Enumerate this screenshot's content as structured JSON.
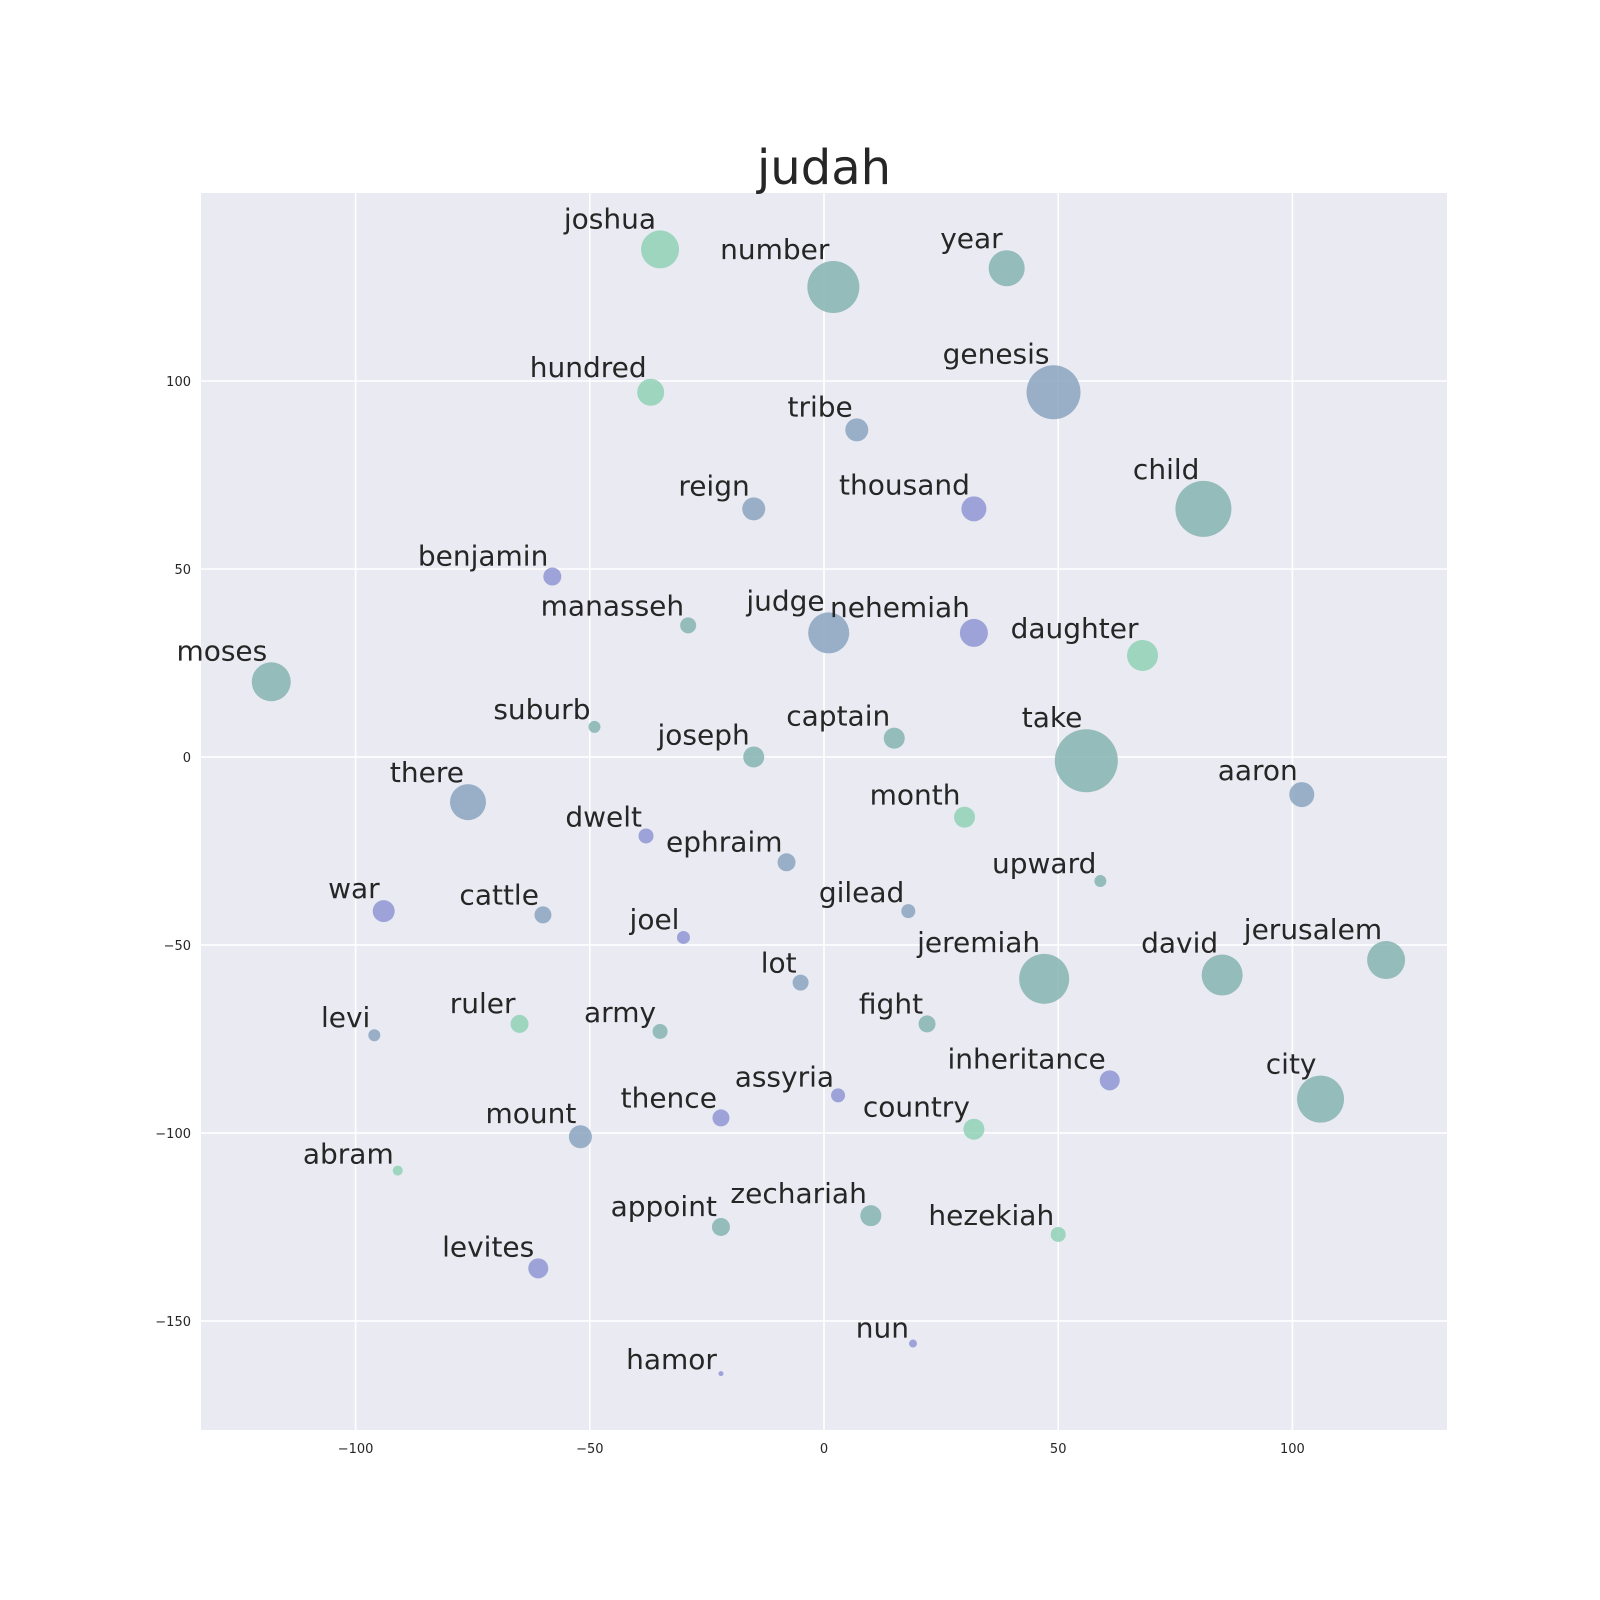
{
  "chart_data": {
    "type": "scatter",
    "title": "judah",
    "xlabel": "",
    "ylabel": "",
    "xlim": [
      -133,
      133
    ],
    "ylim": [
      -179,
      150
    ],
    "xticks": [
      -100,
      -50,
      0,
      50,
      100
    ],
    "yticks": [
      100,
      50,
      0,
      -50,
      -100,
      -150
    ],
    "grid": true,
    "colors": {
      "background": "#eaeaf2",
      "green": "#8fd1b5",
      "teal": "#85b4b0",
      "steel": "#8aa4c0",
      "violet": "#8f96d4"
    },
    "points": [
      {
        "label": "joshua",
        "x": -35,
        "y": 135,
        "size": 38,
        "color": "green"
      },
      {
        "label": "number",
        "x": 2,
        "y": 125,
        "size": 52,
        "color": "teal"
      },
      {
        "label": "year",
        "x": 39,
        "y": 130,
        "size": 36,
        "color": "teal"
      },
      {
        "label": "hundred",
        "x": -37,
        "y": 97,
        "size": 27,
        "color": "green"
      },
      {
        "label": "genesis",
        "x": 49,
        "y": 97,
        "size": 54,
        "color": "steel"
      },
      {
        "label": "tribe",
        "x": 7,
        "y": 87,
        "size": 23,
        "color": "steel"
      },
      {
        "label": "reign",
        "x": -15,
        "y": 66,
        "size": 23,
        "color": "steel"
      },
      {
        "label": "thousand",
        "x": 32,
        "y": 66,
        "size": 25,
        "color": "violet"
      },
      {
        "label": "child",
        "x": 81,
        "y": 66,
        "size": 56,
        "color": "teal"
      },
      {
        "label": "benjamin",
        "x": -58,
        "y": 48,
        "size": 18,
        "color": "violet"
      },
      {
        "label": "manasseh",
        "x": -29,
        "y": 35,
        "size": 16,
        "color": "teal"
      },
      {
        "label": "judge",
        "x": 1,
        "y": 33,
        "size": 41,
        "color": "steel"
      },
      {
        "label": "nehemiah",
        "x": 32,
        "y": 33,
        "size": 28,
        "color": "violet"
      },
      {
        "label": "daughter",
        "x": 68,
        "y": 27,
        "size": 31,
        "color": "green"
      },
      {
        "label": "moses",
        "x": -118,
        "y": 20,
        "size": 39,
        "color": "teal"
      },
      {
        "label": "suburb",
        "x": -49,
        "y": 8,
        "size": 12,
        "color": "teal"
      },
      {
        "label": "captain",
        "x": 15,
        "y": 5,
        "size": 21,
        "color": "teal"
      },
      {
        "label": "joseph",
        "x": -15,
        "y": 0,
        "size": 21,
        "color": "teal"
      },
      {
        "label": "take",
        "x": 56,
        "y": -1,
        "size": 63,
        "color": "teal"
      },
      {
        "label": "aaron",
        "x": 102,
        "y": -10,
        "size": 25,
        "color": "steel"
      },
      {
        "label": "there",
        "x": -76,
        "y": -12,
        "size": 36,
        "color": "steel"
      },
      {
        "label": "month",
        "x": 30,
        "y": -16,
        "size": 21,
        "color": "green"
      },
      {
        "label": "dwelt",
        "x": -38,
        "y": -21,
        "size": 15,
        "color": "violet"
      },
      {
        "label": "ephraim",
        "x": -8,
        "y": -28,
        "size": 18,
        "color": "steel"
      },
      {
        "label": "upward",
        "x": 59,
        "y": -33,
        "size": 12,
        "color": "teal"
      },
      {
        "label": "war",
        "x": -94,
        "y": -41,
        "size": 22,
        "color": "violet"
      },
      {
        "label": "cattle",
        "x": -60,
        "y": -42,
        "size": 17,
        "color": "steel"
      },
      {
        "label": "gilead",
        "x": 18,
        "y": -41,
        "size": 14,
        "color": "steel"
      },
      {
        "label": "joel",
        "x": -30,
        "y": -48,
        "size": 13,
        "color": "violet"
      },
      {
        "label": "lot",
        "x": -5,
        "y": -60,
        "size": 16,
        "color": "steel"
      },
      {
        "label": "jeremiah",
        "x": 47,
        "y": -59,
        "size": 50,
        "color": "teal"
      },
      {
        "label": "david",
        "x": 85,
        "y": -58,
        "size": 41,
        "color": "teal"
      },
      {
        "label": "jerusalem",
        "x": 120,
        "y": -54,
        "size": 38,
        "color": "teal"
      },
      {
        "label": "levi",
        "x": -96,
        "y": -74,
        "size": 12,
        "color": "steel"
      },
      {
        "label": "ruler",
        "x": -65,
        "y": -71,
        "size": 18,
        "color": "green"
      },
      {
        "label": "army",
        "x": -35,
        "y": -73,
        "size": 15,
        "color": "teal"
      },
      {
        "label": "fight",
        "x": 22,
        "y": -71,
        "size": 17,
        "color": "teal"
      },
      {
        "label": "inheritance",
        "x": 61,
        "y": -86,
        "size": 20,
        "color": "violet"
      },
      {
        "label": "assyria",
        "x": 3,
        "y": -90,
        "size": 14,
        "color": "violet"
      },
      {
        "label": "city",
        "x": 106,
        "y": -91,
        "size": 47,
        "color": "teal"
      },
      {
        "label": "thence",
        "x": -22,
        "y": -96,
        "size": 17,
        "color": "violet"
      },
      {
        "label": "country",
        "x": 32,
        "y": -99,
        "size": 21,
        "color": "green"
      },
      {
        "label": "mount",
        "x": -52,
        "y": -101,
        "size": 23,
        "color": "steel"
      },
      {
        "label": "abram",
        "x": -91,
        "y": -110,
        "size": 10,
        "color": "green"
      },
      {
        "label": "appoint",
        "x": -22,
        "y": -125,
        "size": 18,
        "color": "teal"
      },
      {
        "label": "zechariah",
        "x": 10,
        "y": -122,
        "size": 21,
        "color": "teal"
      },
      {
        "label": "hezekiah",
        "x": 50,
        "y": -127,
        "size": 15,
        "color": "green"
      },
      {
        "label": "levites",
        "x": -61,
        "y": -136,
        "size": 20,
        "color": "violet"
      },
      {
        "label": "nun",
        "x": 19,
        "y": -156,
        "size": 8,
        "color": "violet"
      },
      {
        "label": "hamor",
        "x": -22,
        "y": -164,
        "size": 5,
        "color": "violet"
      }
    ]
  }
}
